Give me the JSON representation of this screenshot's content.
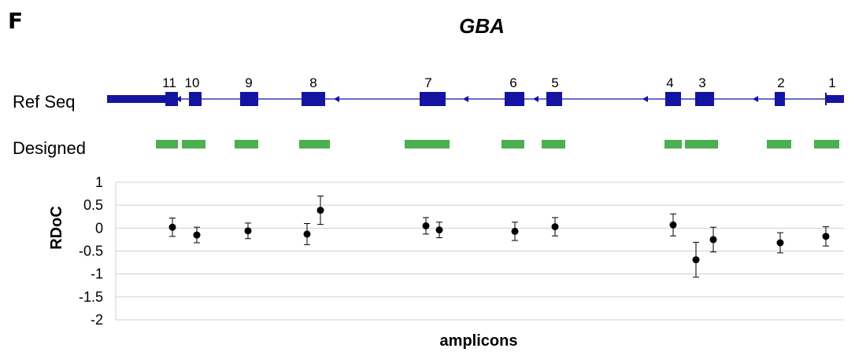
{
  "panel_label": "F",
  "gene_name": "GBA",
  "tracks": {
    "refseq_label": "Ref Seq",
    "designed_label": "Designed"
  },
  "colors": {
    "exon": "#1414a0",
    "designed": "#4caf50",
    "point": "#000000",
    "grid": "#d0d0d0"
  },
  "exon_labels": [
    "11",
    "10",
    "9",
    "8",
    "7",
    "6",
    "5",
    "4",
    "3",
    "2",
    "1"
  ],
  "chart_data": {
    "type": "scatter",
    "title": "",
    "xlabel": "amplicons",
    "ylabel": "RDoC",
    "ylim": [
      -2,
      1
    ],
    "yticks": [
      1,
      0.5,
      0,
      -0.5,
      -1,
      -1.5,
      -2
    ],
    "yticklabels": [
      "1",
      "0.5",
      "0",
      "-0.5",
      "-1",
      "-1.5",
      "-2"
    ],
    "grid": true,
    "points": [
      {
        "exon": "11",
        "y": 0.02,
        "yerr": 0.2
      },
      {
        "exon": "10",
        "y": -0.15,
        "yerr": 0.17
      },
      {
        "exon": "9",
        "y": -0.06,
        "yerr": 0.17
      },
      {
        "exon": "8",
        "y": -0.13,
        "yerr": 0.23
      },
      {
        "exon": "8",
        "y": 0.39,
        "yerr": 0.31
      },
      {
        "exon": "7",
        "y": 0.05,
        "yerr": 0.18
      },
      {
        "exon": "7",
        "y": -0.04,
        "yerr": 0.17
      },
      {
        "exon": "6",
        "y": -0.07,
        "yerr": 0.2
      },
      {
        "exon": "5",
        "y": 0.03,
        "yerr": 0.2
      },
      {
        "exon": "4",
        "y": 0.07,
        "yerr": 0.24
      },
      {
        "exon": "3",
        "y": -0.69,
        "yerr": 0.38
      },
      {
        "exon": "3",
        "y": -0.25,
        "yerr": 0.27
      },
      {
        "exon": "2",
        "y": -0.32,
        "yerr": 0.22
      },
      {
        "exon": "1",
        "y": -0.18,
        "yerr": 0.21
      }
    ]
  }
}
